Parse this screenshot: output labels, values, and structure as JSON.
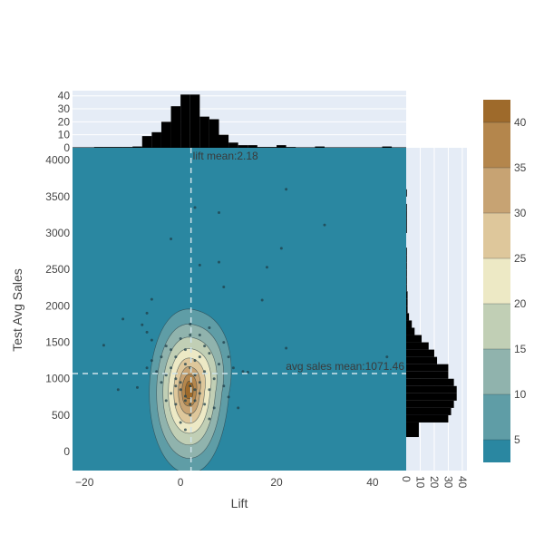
{
  "chart_data": {
    "type": "scatter",
    "subtype": "joint-plot with 2D density contour and marginal histograms",
    "xlabel": "Lift",
    "ylabel": "Test Avg Sales",
    "xlim": [
      -22.5,
      47
    ],
    "ylim": [
      -260,
      4170
    ],
    "x_ticks": [
      -20,
      0,
      20,
      40
    ],
    "x_tick_labels": [
      "−20",
      "0",
      "20",
      "40"
    ],
    "y_ticks": [
      0,
      500,
      1000,
      1500,
      2000,
      2500,
      3000,
      3500,
      4000
    ],
    "y_tick_labels": [
      "0",
      "500",
      "1000",
      "1500",
      "2000",
      "2500",
      "3000",
      "3500",
      "4000"
    ],
    "mean_lines": {
      "lift_mean": 2.18,
      "lift_mean_label": "lift mean:2.18",
      "sales_mean": 1071.46,
      "sales_mean_label": "avg sales mean:1071.46"
    },
    "density": {
      "center": [
        1.8,
        800
      ],
      "levels": [
        5,
        10,
        15,
        20,
        25,
        30,
        35,
        40
      ]
    },
    "colorbar": {
      "min": 2.5,
      "max": 42.5,
      "ticks": [
        5,
        10,
        15,
        20,
        25,
        30,
        35,
        40
      ],
      "colors": [
        "#2a87a1",
        "#5f9da6",
        "#90b3ad",
        "#c1cfb5",
        "#ede9c5",
        "#dec79b",
        "#c7a373",
        "#b4864c",
        "#9e6a2b"
      ]
    },
    "marginal_x": {
      "label": "",
      "ticks": [
        0,
        10,
        20,
        30,
        40
      ],
      "bin_width": 2,
      "bins": [
        {
          "x": -17,
          "count": 0.6
        },
        {
          "x": -15,
          "count": 0.6
        },
        {
          "x": -13,
          "count": 0.6
        },
        {
          "x": -11,
          "count": 0.6
        },
        {
          "x": -9,
          "count": 1
        },
        {
          "x": -7,
          "count": 9
        },
        {
          "x": -5,
          "count": 12
        },
        {
          "x": -3,
          "count": 20
        },
        {
          "x": -1,
          "count": 32
        },
        {
          "x": 1,
          "count": 41
        },
        {
          "x": 3,
          "count": 41
        },
        {
          "x": 5,
          "count": 24
        },
        {
          "x": 7,
          "count": 22
        },
        {
          "x": 9,
          "count": 10
        },
        {
          "x": 11,
          "count": 4
        },
        {
          "x": 13,
          "count": 2
        },
        {
          "x": 15,
          "count": 2
        },
        {
          "x": 17,
          "count": 0.6
        },
        {
          "x": 19,
          "count": 0.6
        },
        {
          "x": 21,
          "count": 2
        },
        {
          "x": 23,
          "count": 0.6
        },
        {
          "x": 29,
          "count": 1
        },
        {
          "x": 43,
          "count": 1
        }
      ]
    },
    "marginal_y": {
      "ticks": [
        0,
        10,
        20,
        30,
        40
      ],
      "tick_labels": [
        "0",
        "10",
        "20",
        "30",
        "40"
      ],
      "bin_width": 100,
      "bins": [
        {
          "y": 250,
          "count": 9
        },
        {
          "y": 350,
          "count": 9
        },
        {
          "y": 450,
          "count": 30
        },
        {
          "y": 550,
          "count": 32
        },
        {
          "y": 650,
          "count": 34
        },
        {
          "y": 750,
          "count": 36
        },
        {
          "y": 850,
          "count": 36
        },
        {
          "y": 950,
          "count": 34
        },
        {
          "y": 1050,
          "count": 30
        },
        {
          "y": 1150,
          "count": 30
        },
        {
          "y": 1250,
          "count": 22
        },
        {
          "y": 1350,
          "count": 20
        },
        {
          "y": 1450,
          "count": 16
        },
        {
          "y": 1550,
          "count": 11
        },
        {
          "y": 1650,
          "count": 6
        },
        {
          "y": 1750,
          "count": 4
        },
        {
          "y": 1850,
          "count": 2
        },
        {
          "y": 1950,
          "count": 1
        },
        {
          "y": 2050,
          "count": 1
        },
        {
          "y": 2150,
          "count": 1
        },
        {
          "y": 2250,
          "count": 0.5
        },
        {
          "y": 2350,
          "count": 0.5
        },
        {
          "y": 2450,
          "count": 0.5
        },
        {
          "y": 2550,
          "count": 0.5
        },
        {
          "y": 2650,
          "count": 0.5
        },
        {
          "y": 2750,
          "count": 0.5
        },
        {
          "y": 3050,
          "count": 0.5
        },
        {
          "y": 3150,
          "count": 0.5
        },
        {
          "y": 3250,
          "count": 0.5
        },
        {
          "y": 3350,
          "count": 0.5
        },
        {
          "y": 3550,
          "count": 0.5
        }
      ]
    },
    "points": [
      [
        22,
        3600
      ],
      [
        30,
        3110
      ],
      [
        3,
        3350
      ],
      [
        8,
        3280
      ],
      [
        -2,
        2920
      ],
      [
        21,
        2790
      ],
      [
        18,
        2530
      ],
      [
        8,
        2600
      ],
      [
        4,
        2560
      ],
      [
        9,
        2260
      ],
      [
        17,
        2080
      ],
      [
        -6,
        2090
      ],
      [
        -7,
        1900
      ],
      [
        -12,
        1820
      ],
      [
        -8,
        1740
      ],
      [
        -7,
        1640
      ],
      [
        -6,
        1530
      ],
      [
        -16,
        1460
      ],
      [
        22,
        1420
      ],
      [
        43,
        1300
      ],
      [
        -13,
        850
      ],
      [
        -9,
        880
      ],
      [
        14,
        1090
      ],
      [
        13,
        1100
      ],
      [
        12,
        600
      ],
      [
        10,
        1300
      ],
      [
        9,
        1500
      ],
      [
        6,
        1700
      ],
      [
        5,
        1450
      ],
      [
        2,
        1600
      ],
      [
        0,
        1550
      ],
      [
        -3,
        1450
      ],
      [
        -1,
        1300
      ],
      [
        1,
        1200
      ],
      [
        3,
        1050
      ],
      [
        4,
        950
      ],
      [
        2,
        900
      ],
      [
        0,
        850
      ],
      [
        -2,
        800
      ],
      [
        1,
        760
      ],
      [
        3,
        700
      ],
      [
        5,
        650
      ],
      [
        -1,
        650
      ],
      [
        -3,
        700
      ],
      [
        -4,
        950
      ],
      [
        -5,
        1100
      ],
      [
        -2,
        1150
      ],
      [
        6,
        850
      ],
      [
        7,
        1000
      ],
      [
        8,
        1200
      ],
      [
        4,
        1300
      ],
      [
        2,
        500
      ],
      [
        0,
        400
      ],
      [
        1,
        300
      ],
      [
        6,
        450
      ],
      [
        -1,
        1000
      ],
      [
        0,
        950
      ],
      [
        2,
        1150
      ],
      [
        3,
        1250
      ],
      [
        4,
        800
      ],
      [
        -2,
        1400
      ],
      [
        5,
        1100
      ],
      [
        1,
        700
      ],
      [
        2,
        650
      ],
      [
        3,
        850
      ],
      [
        -1,
        900
      ],
      [
        -3,
        1050
      ],
      [
        9,
        900
      ],
      [
        10,
        750
      ],
      [
        7,
        600
      ],
      [
        -6,
        1250
      ],
      [
        -7,
        1150
      ],
      [
        1,
        1400
      ],
      [
        6,
        1350
      ],
      [
        4,
        1600
      ],
      [
        2,
        1750
      ],
      [
        -4,
        1300
      ],
      [
        11,
        1150
      ]
    ]
  }
}
